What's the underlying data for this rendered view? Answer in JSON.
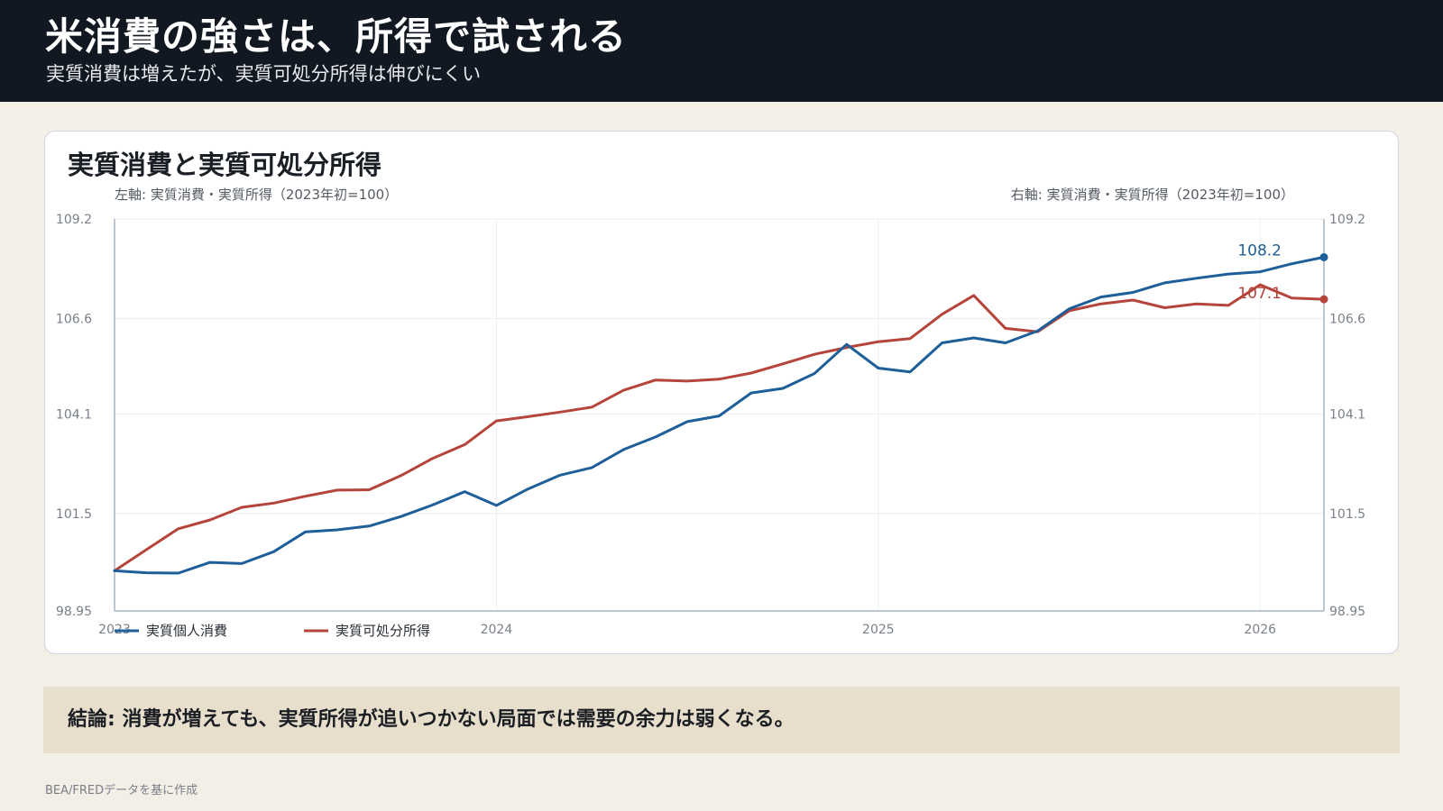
{
  "header": {
    "title": "米消費の強さは、所得で試される",
    "subtitle": "実質消費は増えたが、実質可処分所得は伸びにくい"
  },
  "colors": {
    "header_bg": "#111821",
    "page_bg": "#f3efe7",
    "consumption": "#1f5f99",
    "income": "#b5443b",
    "conclusion_bg": "#e7decc"
  },
  "chart_data": {
    "type": "line",
    "title": "実質消費と実質可処分所得",
    "left_axis_label": "左軸: 実質消費・実質所得（2023年初=100）",
    "right_axis_label": "右軸: 実質消費・実質所得（2023年初=100）",
    "ylim": [
      98.95,
      109.2
    ],
    "yticks": [
      "109.2",
      "106.6",
      "104.1",
      "101.5",
      "98.95"
    ],
    "ytick_values": [
      109.2,
      106.6,
      104.1,
      101.5,
      98.95
    ],
    "xticks": [
      "2023",
      "2024",
      "2025",
      "2026"
    ],
    "xtick_values": [
      2023.0,
      2024.0,
      2025.0,
      2026.0
    ],
    "grid": true,
    "legend_position": "bottom-left",
    "series": [
      {
        "name": "実質個人消費",
        "color": "#1f5f99",
        "end_label": "108.2",
        "x": [
          2023.0,
          2023.083,
          2023.167,
          2023.25,
          2023.333,
          2023.417,
          2023.5,
          2023.583,
          2023.667,
          2023.75,
          2023.833,
          2023.917,
          2024.0,
          2024.083,
          2024.167,
          2024.25,
          2024.333,
          2024.417,
          2024.5,
          2024.583,
          2024.667,
          2024.75,
          2024.833,
          2024.917,
          2025.0,
          2025.083,
          2025.167,
          2025.25,
          2025.333,
          2025.417,
          2025.5,
          2025.583,
          2025.667,
          2025.75,
          2025.833,
          2025.917,
          2026.0,
          2026.083,
          2026.167
        ],
        "values": [
          100.0,
          99.95,
          99.94,
          100.22,
          100.19,
          100.5,
          101.02,
          101.07,
          101.17,
          101.42,
          101.72,
          102.07,
          101.71,
          102.14,
          102.5,
          102.7,
          103.17,
          103.5,
          103.9,
          104.05,
          104.65,
          104.77,
          105.16,
          105.92,
          105.3,
          105.2,
          105.96,
          106.09,
          105.96,
          106.27,
          106.85,
          107.16,
          107.28,
          107.53,
          107.65,
          107.76,
          107.82,
          108.03,
          108.2
        ]
      },
      {
        "name": "実質可処分所得",
        "color": "#b5443b",
        "end_label": "107.1",
        "x": [
          2023.0,
          2023.083,
          2023.167,
          2023.25,
          2023.333,
          2023.417,
          2023.5,
          2023.583,
          2023.667,
          2023.75,
          2023.833,
          2023.917,
          2024.0,
          2024.083,
          2024.167,
          2024.25,
          2024.333,
          2024.417,
          2024.5,
          2024.583,
          2024.667,
          2024.75,
          2024.833,
          2024.917,
          2025.0,
          2025.083,
          2025.167,
          2025.25,
          2025.333,
          2025.417,
          2025.5,
          2025.583,
          2025.667,
          2025.75,
          2025.833,
          2025.917,
          2026.0,
          2026.083,
          2026.167
        ],
        "values": [
          100.0,
          100.55,
          101.1,
          101.33,
          101.66,
          101.77,
          101.95,
          102.11,
          102.12,
          102.49,
          102.94,
          103.3,
          103.92,
          104.03,
          104.15,
          104.28,
          104.72,
          104.99,
          104.96,
          105.01,
          105.17,
          105.41,
          105.66,
          105.84,
          105.99,
          106.07,
          106.71,
          107.2,
          106.34,
          106.25,
          106.8,
          106.98,
          107.08,
          106.88,
          106.98,
          106.94,
          107.48,
          107.13,
          107.1
        ]
      }
    ]
  },
  "conclusion": {
    "text": "結論: 消費が増えても、実質所得が追いつかない局面では需要の余力は弱くなる。"
  },
  "footer": {
    "source": "BEA/FREDデータを基に作成"
  }
}
